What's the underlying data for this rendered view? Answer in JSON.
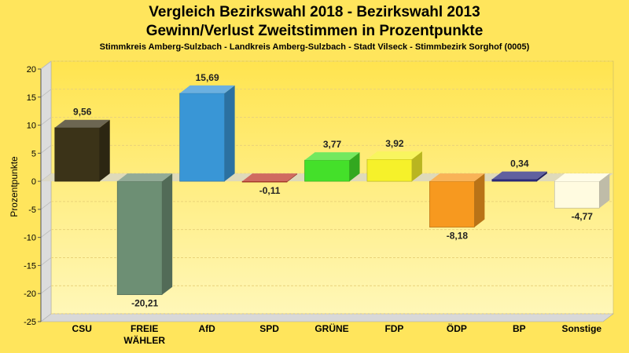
{
  "chart_data": {
    "type": "bar",
    "title": "Vergleich Bezirkswahl 2018 - Bezirkswahl 2013",
    "title2": "Gewinn/Verlust Zweitstimmen in Prozentpunkte",
    "subtitle": "Stimmkreis Amberg-Sulzbach - Landkreis Amberg-Sulzbach - Stadt Vilseck - Stimmbezirk Sorghof (0005)",
    "ylabel": "Prozentpunkte",
    "ylim": [
      -25,
      20
    ],
    "yticks": [
      20,
      15,
      10,
      5,
      0,
      -5,
      -10,
      -15,
      -20,
      -25
    ],
    "grid": true,
    "categories": [
      "CSU",
      "FREIE WÄHLER",
      "AfD",
      "SPD",
      "GRÜNE",
      "FDP",
      "ÖDP",
      "BP",
      "Sonstige"
    ],
    "category_lines": [
      [
        "CSU"
      ],
      [
        "FREIE",
        "WÄHLER"
      ],
      [
        "AfD"
      ],
      [
        "SPD"
      ],
      [
        "GRÜNE"
      ],
      [
        "FDP"
      ],
      [
        "ÖDP"
      ],
      [
        "BP"
      ],
      [
        "Sonstige"
      ]
    ],
    "values": [
      9.56,
      -20.21,
      15.69,
      -0.11,
      3.77,
      3.92,
      -8.18,
      0.34,
      -4.77
    ],
    "value_labels": [
      "9,56",
      "-20,21",
      "15,69",
      "-0,11",
      "3,77",
      "3,92",
      "-8,18",
      "0,34",
      "-4,77"
    ],
    "colors": [
      "#3b3318",
      "#6d8f74",
      "#3996d6",
      "#c0392b",
      "#44e02a",
      "#f6f12a",
      "#f7991f",
      "#2b2b7f",
      "#fffbe0"
    ]
  }
}
